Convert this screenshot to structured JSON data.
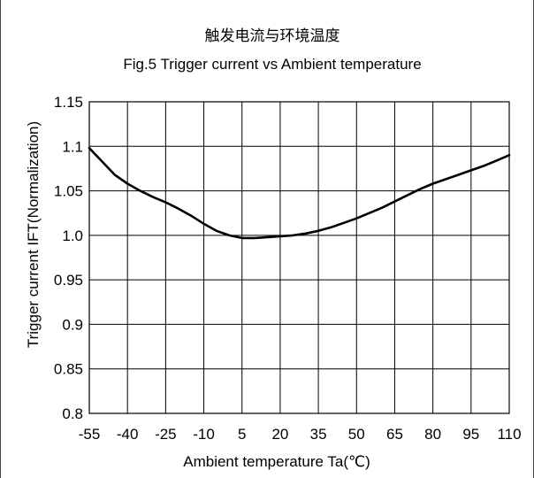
{
  "chart_data": {
    "type": "line",
    "title": "触发电流与环境温度",
    "subtitle": "Fig.5 Trigger current vs Ambient temperature",
    "xlabel": "Ambient temperature Ta(℃)",
    "ylabel": "Trigger current IFT(Normalization)",
    "xlim": [
      -55,
      110
    ],
    "ylim": [
      0.8,
      1.15
    ],
    "x_ticks": [
      -55,
      -40,
      -25,
      -10,
      5,
      20,
      35,
      50,
      65,
      80,
      95,
      110
    ],
    "x_tick_labels": [
      "-55",
      "-40",
      "-25",
      "-10",
      "5",
      "20",
      "35",
      "50",
      "65",
      "80",
      "95",
      "110"
    ],
    "y_ticks": [
      0.8,
      0.85,
      0.9,
      0.95,
      1.0,
      1.05,
      1.1,
      1.15
    ],
    "y_tick_labels": [
      "0.8",
      "0.85",
      "0.9",
      "0.95",
      "1.0",
      "1.05",
      "1.1",
      "1.15"
    ],
    "grid": true,
    "line_color": "#000000",
    "series": [
      {
        "x": [
          -55,
          -50,
          -45,
          -40,
          -35,
          -30,
          -25,
          -20,
          -15,
          -10,
          -5,
          0,
          5,
          10,
          15,
          20,
          25,
          30,
          35,
          40,
          45,
          50,
          55,
          60,
          65,
          70,
          75,
          80,
          85,
          90,
          95,
          100,
          105,
          110
        ],
        "values": [
          1.098,
          1.083,
          1.068,
          1.058,
          1.05,
          1.043,
          1.037,
          1.03,
          1.022,
          1.013,
          1.005,
          1.0,
          0.997,
          0.997,
          0.998,
          0.999,
          1.0,
          1.002,
          1.005,
          1.009,
          1.014,
          1.019,
          1.025,
          1.031,
          1.038,
          1.045,
          1.052,
          1.058,
          1.063,
          1.068,
          1.073,
          1.078,
          1.084,
          1.09
        ]
      }
    ]
  }
}
